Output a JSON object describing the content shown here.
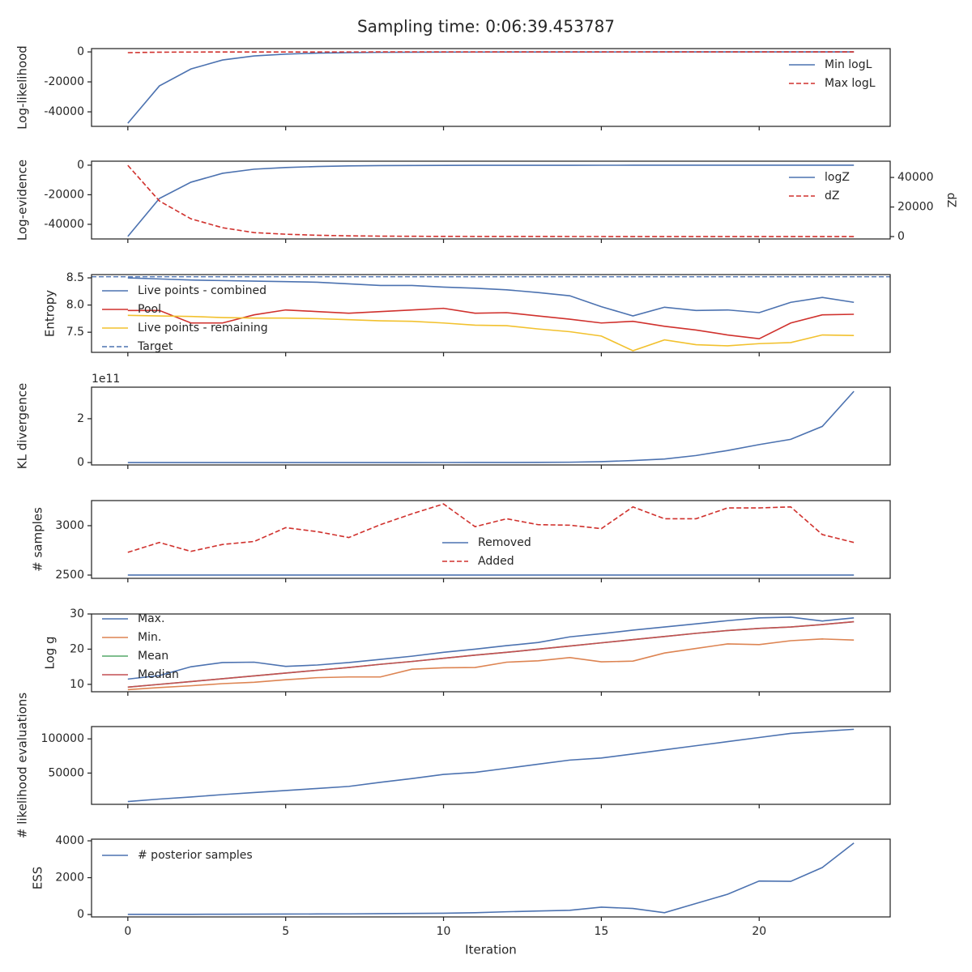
{
  "title": "Sampling time: 0:06:39.453787",
  "chart_data": [
    {
      "type": "line",
      "ylabel": "Log-likelihood",
      "legend": "upper right",
      "x": [
        0,
        1,
        2,
        3,
        4,
        5,
        6,
        7,
        8,
        9,
        10,
        11,
        12,
        13,
        14,
        15,
        16,
        17,
        18,
        19,
        20,
        21,
        22,
        23
      ],
      "xlim": [
        -1.15,
        24.15
      ],
      "xticks": [
        0,
        5,
        10,
        15,
        20
      ],
      "ylim": [
        -49700,
        2200
      ],
      "yticks": [
        -40000,
        -20000,
        0
      ],
      "series": [
        {
          "name": "Min logL",
          "color": "#4c72b0",
          "linestyle": "solid",
          "values": [
            -47600,
            -22700,
            -11400,
            -5400,
            -2700,
            -1500,
            -800,
            -500,
            -300,
            -200,
            -150,
            -100,
            -80,
            -60,
            -50,
            -40,
            -30,
            -20,
            -20,
            -10,
            -10,
            -10,
            0,
            0
          ]
        },
        {
          "name": "Max logL",
          "color": "#d0312d",
          "linestyle": "dashed",
          "values": [
            -500,
            -200,
            -100,
            -80,
            -60,
            -50,
            -40,
            -30,
            -20,
            -20,
            -10,
            -10,
            -10,
            0,
            0,
            0,
            0,
            0,
            0,
            0,
            0,
            0,
            0,
            0
          ]
        }
      ]
    },
    {
      "type": "line",
      "ylabel": "Log-evidence",
      "y2label": "dZ",
      "legend": "upper right",
      "x": [
        0,
        1,
        2,
        3,
        4,
        5,
        6,
        7,
        8,
        9,
        10,
        11,
        12,
        13,
        14,
        15,
        16,
        17,
        18,
        19,
        20,
        21,
        22,
        23
      ],
      "xlim": [
        -1.15,
        24.15
      ],
      "xticks": [
        0,
        5,
        10,
        15,
        20
      ],
      "ylim": [
        -49900,
        2700
      ],
      "yticks": [
        -40000,
        -20000,
        0
      ],
      "y2lim": [
        -1600,
        51000
      ],
      "y2ticks": [
        0,
        20000,
        40000
      ],
      "series": [
        {
          "name": "logZ",
          "color": "#4c72b0",
          "linestyle": "solid",
          "values": [
            -48200,
            -22500,
            -11500,
            -5500,
            -2700,
            -1600,
            -900,
            -500,
            -300,
            -200,
            -150,
            -100,
            -80,
            -60,
            -50,
            -40,
            -30,
            -20,
            -20,
            -10,
            -10,
            -10,
            0,
            0
          ]
        },
        {
          "name": "dZ",
          "color": "#d0312d",
          "linestyle": "dashed",
          "axis": "y2",
          "values": [
            48200,
            24100,
            12000,
            6000,
            2700,
            1600,
            900,
            500,
            300,
            200,
            150,
            100,
            80,
            60,
            50,
            40,
            30,
            20,
            20,
            10,
            10,
            10,
            0,
            0
          ]
        }
      ]
    },
    {
      "type": "line",
      "ylabel": "Entropy",
      "legend": "upper left",
      "x": [
        0,
        1,
        2,
        3,
        4,
        5,
        6,
        7,
        8,
        9,
        10,
        11,
        12,
        13,
        14,
        15,
        16,
        17,
        18,
        19,
        20,
        21,
        22,
        23
      ],
      "xlim": [
        -1.15,
        24.15
      ],
      "xticks": [
        0,
        5,
        10,
        15,
        20
      ],
      "ylim": [
        7.13,
        8.56
      ],
      "yticks": [
        7.5,
        {
          "value": 8,
          "label": "8.0"
        },
        8.5
      ],
      "series": [
        {
          "name": "Live points - combined",
          "color": "#4c72b0",
          "linestyle": "solid",
          "values": [
            8.5,
            8.48,
            8.46,
            8.45,
            8.44,
            8.43,
            8.42,
            8.39,
            8.36,
            8.36,
            8.33,
            8.31,
            8.28,
            8.23,
            8.17,
            7.97,
            7.8,
            7.96,
            7.9,
            7.91,
            7.86,
            8.05,
            8.14,
            8.05
          ]
        },
        {
          "name": "Pool",
          "color": "#d0312d",
          "linestyle": "solid",
          "values": [
            7.9,
            7.9,
            7.67,
            7.67,
            7.82,
            7.91,
            7.88,
            7.85,
            7.88,
            7.91,
            7.94,
            7.85,
            7.86,
            7.8,
            7.74,
            7.67,
            7.7,
            7.61,
            7.54,
            7.45,
            7.38,
            7.67,
            7.82,
            7.83
          ]
        },
        {
          "name": "Live points - remaining",
          "color": "#f2c12e",
          "linestyle": "solid",
          "values": [
            7.81,
            7.8,
            7.79,
            7.77,
            7.76,
            7.76,
            7.75,
            7.73,
            7.71,
            7.7,
            7.67,
            7.63,
            7.62,
            7.56,
            7.51,
            7.43,
            7.16,
            7.36,
            7.27,
            7.25,
            7.29,
            7.31,
            7.45,
            7.44
          ]
        }
      ],
      "reference_lines": [
        {
          "name": "Target",
          "y": 8.52,
          "color": "#4c72b0",
          "linestyle": "dashed"
        }
      ]
    },
    {
      "type": "line",
      "ylabel": "KL divergence",
      "offset_label": "1e11",
      "x": [
        0,
        1,
        2,
        3,
        4,
        5,
        6,
        7,
        8,
        9,
        10,
        11,
        12,
        13,
        14,
        15,
        16,
        17,
        18,
        19,
        20,
        21,
        22,
        23
      ],
      "xlim": [
        -1.15,
        24.15
      ],
      "xticks": [
        0,
        5,
        10,
        15,
        20
      ],
      "ylim": [
        -0.11,
        3.44
      ],
      "yticks": [
        0,
        2
      ],
      "series": [
        {
          "color": "#4c72b0",
          "linestyle": "solid",
          "values": [
            0,
            0,
            0,
            0,
            0,
            0,
            0,
            0,
            0,
            0,
            0.001,
            0.002,
            0.004,
            0.007,
            0.015,
            0.04,
            0.09,
            0.16,
            0.32,
            0.55,
            0.82,
            1.06,
            1.65,
            3.25
          ]
        }
      ]
    },
    {
      "type": "line",
      "ylabel": "# samples",
      "legend": "lower center",
      "x": [
        0,
        1,
        2,
        3,
        4,
        5,
        6,
        7,
        8,
        9,
        10,
        11,
        12,
        13,
        14,
        15,
        16,
        17,
        18,
        19,
        20,
        21,
        22,
        23
      ],
      "xlim": [
        -1.15,
        24.15
      ],
      "xticks": [
        0,
        5,
        10,
        15,
        20
      ],
      "ylim": [
        2467,
        3254
      ],
      "yticks": [
        2500,
        3000
      ],
      "series": [
        {
          "name": "Removed",
          "color": "#4c72b0",
          "linestyle": "solid",
          "values": [
            2500,
            2500,
            2500,
            2500,
            2500,
            2500,
            2500,
            2500,
            2500,
            2500,
            2500,
            2500,
            2500,
            2500,
            2500,
            2500,
            2500,
            2500,
            2500,
            2500,
            2500,
            2500,
            2500,
            2500
          ]
        },
        {
          "name": "Added",
          "color": "#d0312d",
          "linestyle": "dashed",
          "values": [
            2730,
            2830,
            2740,
            2810,
            2840,
            2980,
            2940,
            2880,
            3010,
            3120,
            3220,
            2990,
            3070,
            3010,
            3005,
            2970,
            3190,
            3070,
            3070,
            3180,
            3180,
            3190,
            2910,
            2830
          ]
        }
      ]
    },
    {
      "type": "line",
      "ylabel": "Log g",
      "legend": "upper left",
      "x": [
        0,
        1,
        2,
        3,
        4,
        5,
        6,
        7,
        8,
        9,
        10,
        11,
        12,
        13,
        14,
        15,
        16,
        17,
        18,
        19,
        20,
        21,
        22,
        23
      ],
      "xlim": [
        -1.15,
        24.15
      ],
      "xticks": [
        0,
        5,
        10,
        15,
        20
      ],
      "ylim": [
        7.9,
        30
      ],
      "yticks": [
        10,
        20,
        30
      ],
      "series": [
        {
          "name": "Max.",
          "color": "#4c72b0",
          "linestyle": "solid",
          "values": [
            11.5,
            12.5,
            15,
            16.2,
            16.3,
            15.1,
            15.5,
            16.2,
            17.1,
            18,
            19.1,
            20,
            21,
            21.9,
            23.5,
            24.4,
            25.4,
            26.3,
            27.2,
            28.1,
            28.9,
            29.1,
            28,
            28.9
          ]
        },
        {
          "name": "Min.",
          "color": "#dd8452",
          "linestyle": "solid",
          "values": [
            8.5,
            9.1,
            9.6,
            10.2,
            10.6,
            11.3,
            11.9,
            12.1,
            12.1,
            14.3,
            14.7,
            14.8,
            16.3,
            16.7,
            17.6,
            16.4,
            16.6,
            18.9,
            20.2,
            21.5,
            21.3,
            22.4,
            22.9,
            22.6
          ]
        },
        {
          "name": "Mean",
          "color": "#55a868",
          "linestyle": "solid",
          "values": [
            9.2,
            10,
            10.8,
            11.6,
            12.4,
            13.2,
            14,
            14.8,
            15.7,
            16.5,
            17.4,
            18.3,
            19.1,
            20,
            20.9,
            21.8,
            22.7,
            23.6,
            24.5,
            25.3,
            25.9,
            26.3,
            27,
            27.8
          ]
        },
        {
          "name": "Median",
          "color": "#c44e52",
          "linestyle": "solid",
          "values": [
            9.2,
            10,
            10.8,
            11.6,
            12.4,
            13.2,
            14,
            14.8,
            15.7,
            16.5,
            17.4,
            18.3,
            19.1,
            20,
            20.9,
            21.8,
            22.7,
            23.6,
            24.5,
            25.3,
            25.9,
            26.3,
            27,
            27.8
          ]
        }
      ]
    },
    {
      "type": "line",
      "ylabel": "# likelihood evaluations",
      "x": [
        0,
        1,
        2,
        3,
        4,
        5,
        6,
        7,
        8,
        9,
        10,
        11,
        12,
        13,
        14,
        15,
        16,
        17,
        18,
        19,
        20,
        21,
        22,
        23
      ],
      "xlim": [
        -1.15,
        24.15
      ],
      "xticks": [
        0,
        5,
        10,
        15,
        20
      ],
      "ylim": [
        4300,
        118000
      ],
      "yticks": [
        50000,
        100000
      ],
      "series": [
        {
          "color": "#4c72b0",
          "linestyle": "solid",
          "values": [
            8400,
            12000,
            15000,
            18500,
            21500,
            24500,
            27500,
            30500,
            36500,
            42000,
            48000,
            51000,
            57000,
            63000,
            69000,
            72000,
            78000,
            84000,
            90000,
            96000,
            102000,
            108000,
            111000,
            114000
          ]
        }
      ]
    },
    {
      "type": "line",
      "ylabel": "ESS",
      "xlabel": "Iteration",
      "legend": "upper left",
      "x": [
        0,
        1,
        2,
        3,
        4,
        5,
        6,
        7,
        8,
        9,
        10,
        11,
        12,
        13,
        14,
        15,
        16,
        17,
        18,
        19,
        20,
        21,
        22,
        23
      ],
      "xlim": [
        -1.15,
        24.15
      ],
      "xticks": [
        0,
        5,
        10,
        15,
        20
      ],
      "ylim": [
        -130,
        4090
      ],
      "yticks": [
        0,
        2000,
        4000
      ],
      "series": [
        {
          "name": "# posterior samples",
          "color": "#4c72b0",
          "linestyle": "solid",
          "values": [
            10,
            10,
            12,
            15,
            20,
            25,
            30,
            35,
            50,
            60,
            70,
            100,
            150,
            190,
            230,
            400,
            330,
            100,
            600,
            1100,
            1820,
            1800,
            2550,
            3880
          ]
        }
      ]
    }
  ]
}
